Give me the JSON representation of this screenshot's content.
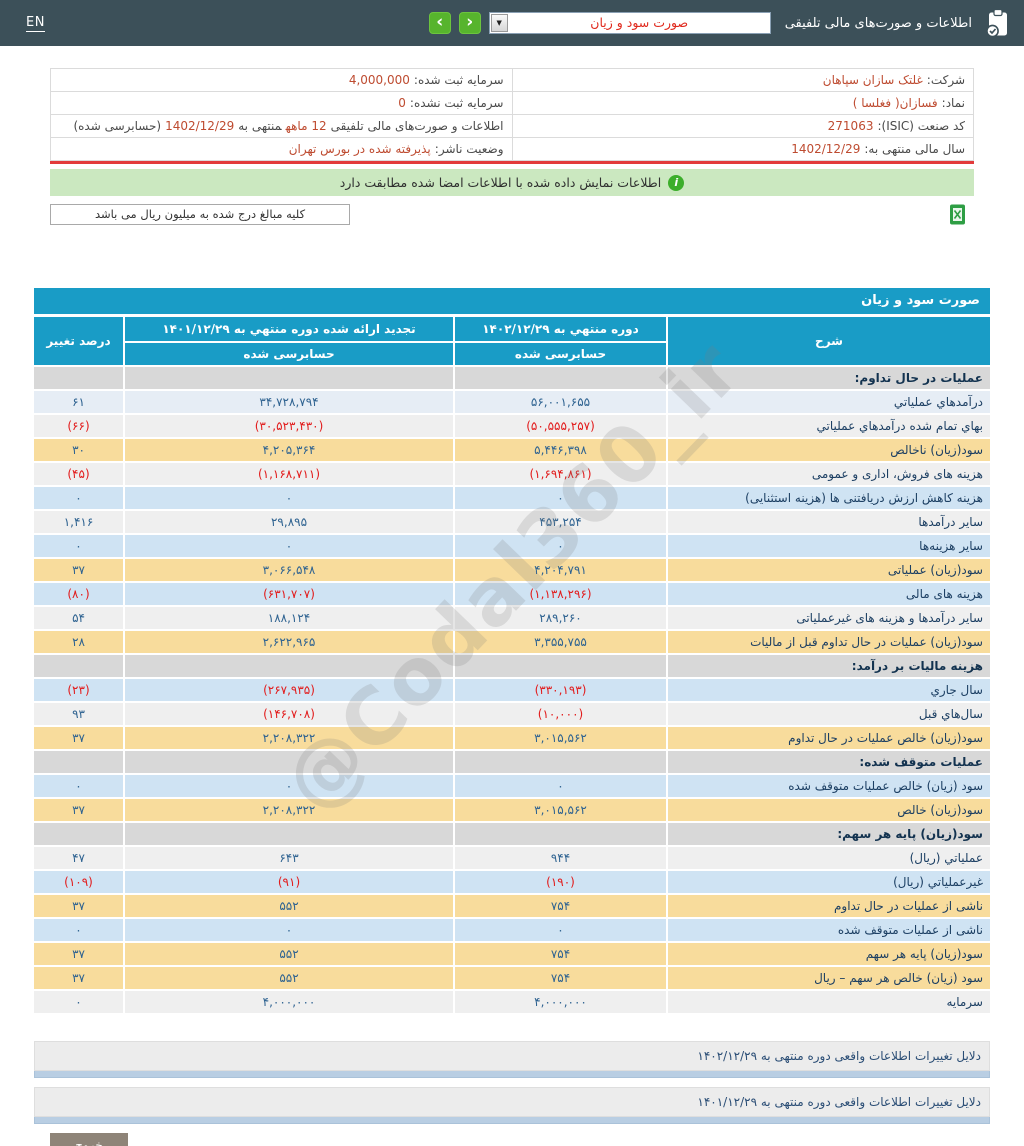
{
  "header": {
    "title": "اطلاعات و صورت‌های مالی تلفیقی",
    "selected_report": "صورت سود و زیان",
    "select_arrow": "▼",
    "nav_next": "‹",
    "nav_prev": "›",
    "lang_label": "EN"
  },
  "company": {
    "c1": {
      "label": "شرکت:",
      "value": "غلتک سازان سپاهان"
    },
    "c2": {
      "label": "سرمایه ثبت شده:",
      "value": "4,000,000"
    },
    "c3": {
      "label": "نماد:",
      "value": "فسازان( فغلسا )"
    },
    "c4": {
      "label": "سرمایه ثبت نشده:",
      "value": "0"
    },
    "c5": {
      "label": "کد صنعت (ISIC):",
      "value": "271063"
    },
    "c6": {
      "p1": "اطلاعات و صورت‌های مالی تلفیقی",
      "p2": "12 ماهه",
      "p3": "منتهی به",
      "p4": "1402/12/29",
      "p5": "(حسابرسی شده)"
    },
    "c7": {
      "label": "سال مالی منتهی به:",
      "value": "1402/12/29"
    },
    "c8": {
      "label": "وضعیت ناشر:",
      "value": "پذیرفته شده در بورس تهران"
    }
  },
  "messages": {
    "signed_match": "اطلاعات نمایش داده شده با اطلاعات امضا شده مطابقت دارد",
    "amounts_unit": "کلیه مبالغ درج شده به میلیون ریال می باشد"
  },
  "watermark": "@Codal360_ir",
  "statement": {
    "title": "صورت سود و زیان",
    "columns": {
      "desc": "شرح",
      "period_current": "دوره منتهي به ۱۴۰۲/۱۲/۲۹",
      "period_prior": "تجدید ارائه شده دوره منتهي به ۱۴۰۱/۱۲/۲۹",
      "audited": "حسابرسی شده",
      "change": "درصد تغییر"
    },
    "rows": [
      {
        "type": "section",
        "label": "عملیات در حال تداوم:"
      },
      {
        "bg": "blue1",
        "label": "درآمدهاي عملیاتي",
        "v1": "۵۶,۰۰۱,۶۵۵",
        "v2": "۳۴,۷۲۸,۷۹۴",
        "pct": "۶۱"
      },
      {
        "bg": "gray",
        "label": "بهاي تمام شده درآمدهاي عملیاتي",
        "v1": "(۵۰,۵۵۵,۲۵۷)",
        "v2": "(۳۰,۵۲۳,۴۳۰)",
        "pct": "(۶۶)"
      },
      {
        "bg": "yellow",
        "label": "سود(زیان) ناخالص",
        "v1": "۵,۴۴۶,۳۹۸",
        "v2": "۴,۲۰۵,۳۶۴",
        "pct": "۳۰"
      },
      {
        "bg": "gray",
        "label": "هزینه های فروش، اداری و عمومی",
        "v1": "(۱,۶۹۴,۸۶۱)",
        "v2": "(۱,۱۶۸,۷۱۱)",
        "pct": "(۴۵)"
      },
      {
        "bg": "blue",
        "label": "هزینه کاهش ارزش دریافتنی ها (هزینه استثنایی)",
        "v1": "۰",
        "v2": "۰",
        "pct": "۰"
      },
      {
        "bg": "gray",
        "label": "سایر درآمدها",
        "v1": "۴۵۳,۲۵۴",
        "v2": "۲۹,۸۹۵",
        "pct": "۱,۴۱۶"
      },
      {
        "bg": "blue",
        "label": "سایر هزینه‌ها",
        "v1": "۰",
        "v2": "۰",
        "pct": "۰"
      },
      {
        "bg": "yellow",
        "label": "سود(زیان) عملیاتی",
        "v1": "۴,۲۰۴,۷۹۱",
        "v2": "۳,۰۶۶,۵۴۸",
        "pct": "۳۷"
      },
      {
        "bg": "blue",
        "label": "هزینه های مالی",
        "v1": "(۱,۱۳۸,۲۹۶)",
        "v2": "(۶۳۱,۷۰۷)",
        "pct": "(۸۰)"
      },
      {
        "bg": "gray",
        "label": "سایر درآمدها و هزینه های غیرعملیاتی",
        "v1": "۲۸۹,۲۶۰",
        "v2": "۱۸۸,۱۲۴",
        "pct": "۵۴"
      },
      {
        "bg": "yellow",
        "label": "سود(زیان) عملیات در حال تداوم قبل از مالیات",
        "v1": "۳,۳۵۵,۷۵۵",
        "v2": "۲,۶۲۲,۹۶۵",
        "pct": "۲۸"
      },
      {
        "type": "section",
        "label": "هزینه مالیات بر درآمد:"
      },
      {
        "bg": "blue",
        "label": "سال جاري",
        "v1": "(۳۳۰,۱۹۳)",
        "v2": "(۲۶۷,۹۳۵)",
        "pct": "(۲۳)"
      },
      {
        "bg": "gray",
        "label": "سال‌هاي قبل",
        "v1": "(۱۰,۰۰۰)",
        "v2": "(۱۴۶,۷۰۸)",
        "pct": "۹۳"
      },
      {
        "bg": "yellow",
        "label": "سود(زیان) خالص عملیات در حال تداوم",
        "v1": "۳,۰۱۵,۵۶۲",
        "v2": "۲,۲۰۸,۳۲۲",
        "pct": "۳۷"
      },
      {
        "type": "section",
        "label": "عملیات متوقف شده:"
      },
      {
        "bg": "blue",
        "label": "سود (زیان) خالص عملیات متوقف شده",
        "v1": "۰",
        "v2": "۰",
        "pct": "۰"
      },
      {
        "bg": "yellow",
        "label": "سود(زیان) خالص",
        "v1": "۳,۰۱۵,۵۶۲",
        "v2": "۲,۲۰۸,۳۲۲",
        "pct": "۳۷"
      },
      {
        "type": "section",
        "label": "سود(زیان) پایه هر سهم:"
      },
      {
        "bg": "gray",
        "label": "عملیاتي (ریال)",
        "v1": "۹۴۴",
        "v2": "۶۴۳",
        "pct": "۴۷"
      },
      {
        "bg": "blue",
        "label": "غیرعملیاتي (ریال)",
        "v1": "(۱۹۰)",
        "v2": "(۹۱)",
        "pct": "(۱۰۹)"
      },
      {
        "bg": "yellow",
        "label": "ناشی از عملیات در حال تداوم",
        "v1": "۷۵۴",
        "v2": "۵۵۲",
        "pct": "۳۷"
      },
      {
        "bg": "blue",
        "label": "ناشی از عملیات متوقف شده",
        "v1": "۰",
        "v2": "۰",
        "pct": "۰"
      },
      {
        "bg": "yellow",
        "label": "سود(زیان) پایه هر سهم",
        "v1": "۷۵۴",
        "v2": "۵۵۲",
        "pct": "۳۷"
      },
      {
        "bg": "yellow",
        "label": "سود (زیان) خالص هر سهم – ریال",
        "v1": "۷۵۴",
        "v2": "۵۵۲",
        "pct": "۳۷"
      },
      {
        "bg": "gray",
        "label": "سرمایه",
        "v1": "۴,۰۰۰,۰۰۰",
        "v2": "۴,۰۰۰,۰۰۰",
        "pct": "۰"
      }
    ]
  },
  "footer": {
    "reasons": [
      "دلایل تغییرات اطلاعات واقعی دوره منتهی به ۱۴۰۲/۱۲/۲۹",
      "دلایل تغییرات اطلاعات واقعی دوره منتهی به ۱۴۰۱/۱۲/۲۹"
    ],
    "logout_label": "خروج"
  }
}
